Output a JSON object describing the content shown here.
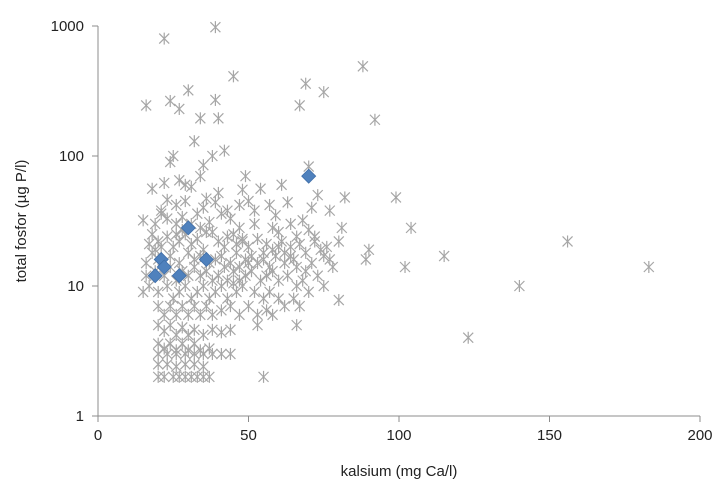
{
  "chart_data": {
    "type": "scatter",
    "title": "",
    "xlabel": "kalsium (mg Ca/l)",
    "ylabel": "total fosfor (µg P/l)",
    "xlim": [
      0,
      200
    ],
    "ylim": [
      1,
      1000
    ],
    "y_scale": "log",
    "grid": false,
    "legend": "none",
    "x_ticks": [
      0,
      50,
      100,
      150,
      200
    ],
    "x_tick_labels": [
      "0",
      "50",
      "100",
      "150",
      "200"
    ],
    "y_ticks": [
      1,
      10,
      100,
      1000
    ],
    "y_tick_labels": [
      "1",
      "10",
      "100",
      "1000"
    ],
    "colors": {
      "series_1": "#a6a6a6",
      "series_2": "#4f81bd",
      "axis": "#8c8c8c"
    },
    "series": [
      {
        "marker": "asterisk",
        "color": "#a6a6a6",
        "points": [
          [
            22,
            800
          ],
          [
            39,
            980
          ],
          [
            88,
            490
          ],
          [
            45,
            410
          ],
          [
            69,
            360
          ],
          [
            75,
            310
          ],
          [
            30,
            320
          ],
          [
            67,
            245
          ],
          [
            16,
            245
          ],
          [
            24,
            265
          ],
          [
            39,
            270
          ],
          [
            27,
            230
          ],
          [
            92,
            190
          ],
          [
            34,
            195
          ],
          [
            40,
            195
          ],
          [
            32,
            130
          ],
          [
            25,
            100
          ],
          [
            24,
            90
          ],
          [
            35,
            85
          ],
          [
            38,
            100
          ],
          [
            42,
            110
          ],
          [
            29,
            60
          ],
          [
            22,
            62
          ],
          [
            18,
            56
          ],
          [
            34,
            70
          ],
          [
            27,
            65
          ],
          [
            31,
            58
          ],
          [
            70,
            83
          ],
          [
            61,
            60
          ],
          [
            49,
            70
          ],
          [
            40,
            52
          ],
          [
            36,
            47
          ],
          [
            39,
            44
          ],
          [
            43,
            38
          ],
          [
            48,
            55
          ],
          [
            54,
            56
          ],
          [
            57,
            42
          ],
          [
            63,
            44
          ],
          [
            71,
            40
          ],
          [
            73,
            50
          ],
          [
            82,
            48
          ],
          [
            99,
            48
          ],
          [
            77,
            38
          ],
          [
            68,
            32
          ],
          [
            59,
            35
          ],
          [
            52,
            30
          ],
          [
            47,
            28
          ],
          [
            44,
            33
          ],
          [
            15,
            32
          ],
          [
            19,
            30
          ],
          [
            21,
            36
          ],
          [
            23,
            33
          ],
          [
            26,
            30
          ],
          [
            28,
            34
          ],
          [
            33,
            36
          ],
          [
            37,
            31
          ],
          [
            18,
            25
          ],
          [
            20,
            22
          ],
          [
            23,
            24
          ],
          [
            25,
            20
          ],
          [
            27,
            22
          ],
          [
            29,
            25
          ],
          [
            31,
            21
          ],
          [
            33,
            23
          ],
          [
            35,
            19
          ],
          [
            38,
            26
          ],
          [
            40,
            22
          ],
          [
            42,
            20
          ],
          [
            45,
            25
          ],
          [
            48,
            22
          ],
          [
            50,
            20
          ],
          [
            53,
            23
          ],
          [
            56,
            21
          ],
          [
            58,
            19
          ],
          [
            61,
            22
          ],
          [
            64,
            20
          ],
          [
            67,
            21
          ],
          [
            69,
            18
          ],
          [
            72,
            24
          ],
          [
            74,
            19
          ],
          [
            76,
            20
          ],
          [
            80,
            22
          ],
          [
            81,
            28
          ],
          [
            104,
            28
          ],
          [
            90,
            19
          ],
          [
            89,
            16
          ],
          [
            18,
            18
          ],
          [
            20,
            16
          ],
          [
            24,
            17
          ],
          [
            27,
            15
          ],
          [
            30,
            18
          ],
          [
            32,
            16
          ],
          [
            34,
            17
          ],
          [
            37,
            15
          ],
          [
            39,
            16
          ],
          [
            41,
            17
          ],
          [
            44,
            15
          ],
          [
            46,
            18
          ],
          [
            49,
            16
          ],
          [
            51,
            17
          ],
          [
            53,
            15
          ],
          [
            55,
            16
          ],
          [
            57,
            14
          ],
          [
            59,
            17
          ],
          [
            62,
            15
          ],
          [
            65,
            16
          ],
          [
            66,
            14
          ],
          [
            69,
            13
          ],
          [
            71,
            15
          ],
          [
            73,
            12
          ],
          [
            115,
            17
          ],
          [
            102,
            14
          ],
          [
            156,
            22
          ],
          [
            183,
            14
          ],
          [
            16,
            12
          ],
          [
            19,
            13
          ],
          [
            22,
            12
          ],
          [
            24,
            14
          ],
          [
            26,
            11
          ],
          [
            28,
            13
          ],
          [
            30,
            12
          ],
          [
            32,
            14
          ],
          [
            34,
            12
          ],
          [
            36,
            13
          ],
          [
            38,
            11
          ],
          [
            40,
            12
          ],
          [
            42,
            14
          ],
          [
            45,
            13
          ],
          [
            47,
            11
          ],
          [
            49,
            12
          ],
          [
            51,
            13
          ],
          [
            54,
            11
          ],
          [
            56,
            12
          ],
          [
            58,
            13
          ],
          [
            60,
            11
          ],
          [
            63,
            12
          ],
          [
            66,
            10
          ],
          [
            68,
            11
          ],
          [
            70,
            9
          ],
          [
            75,
            10
          ],
          [
            17,
            10
          ],
          [
            20,
            9
          ],
          [
            23,
            10
          ],
          [
            25,
            8
          ],
          [
            27,
            9
          ],
          [
            29,
            10
          ],
          [
            31,
            8
          ],
          [
            33,
            9
          ],
          [
            35,
            10
          ],
          [
            37,
            8
          ],
          [
            39,
            9
          ],
          [
            41,
            10
          ],
          [
            43,
            8
          ],
          [
            46,
            9
          ],
          [
            48,
            10
          ],
          [
            52,
            9
          ],
          [
            55,
            8
          ],
          [
            57,
            9
          ],
          [
            60,
            8
          ],
          [
            62,
            7
          ],
          [
            65,
            8
          ],
          [
            67,
            7
          ],
          [
            80,
            7.8
          ],
          [
            140,
            10
          ],
          [
            15,
            9
          ],
          [
            20,
            7
          ],
          [
            22,
            6
          ],
          [
            24,
            7
          ],
          [
            26,
            6
          ],
          [
            28,
            7
          ],
          [
            30,
            6
          ],
          [
            32,
            7
          ],
          [
            34,
            6
          ],
          [
            36,
            7
          ],
          [
            38,
            6
          ],
          [
            41,
            6.5
          ],
          [
            44,
            7
          ],
          [
            47,
            6
          ],
          [
            50,
            7
          ],
          [
            53,
            6
          ],
          [
            56,
            6.5
          ],
          [
            58,
            6
          ],
          [
            66,
            5
          ],
          [
            53,
            5
          ],
          [
            20,
            5
          ],
          [
            22,
            4.5
          ],
          [
            24,
            5
          ],
          [
            26,
            4.2
          ],
          [
            28,
            4.8
          ],
          [
            30,
            4.2
          ],
          [
            32,
            4.6
          ],
          [
            35,
            4.2
          ],
          [
            38,
            4.6
          ],
          [
            41,
            4.4
          ],
          [
            44,
            4.6
          ],
          [
            123,
            4
          ],
          [
            20,
            3.6
          ],
          [
            22,
            3.3
          ],
          [
            24,
            3.6
          ],
          [
            26,
            3.2
          ],
          [
            28,
            3.6
          ],
          [
            30,
            3.2
          ],
          [
            32,
            3.6
          ],
          [
            34,
            3.2
          ],
          [
            37,
            3.3
          ],
          [
            20,
            3
          ],
          [
            23,
            3
          ],
          [
            26,
            3
          ],
          [
            29,
            3
          ],
          [
            32,
            3
          ],
          [
            35,
            3
          ],
          [
            38,
            3
          ],
          [
            41,
            3
          ],
          [
            44,
            3
          ],
          [
            20,
            2.5
          ],
          [
            23,
            2.5
          ],
          [
            26,
            2.4
          ],
          [
            29,
            2.5
          ],
          [
            32,
            2.5
          ],
          [
            35,
            2.4
          ],
          [
            20,
            2
          ],
          [
            22,
            2
          ],
          [
            25,
            2
          ],
          [
            27,
            2
          ],
          [
            29,
            2
          ],
          [
            31,
            2
          ],
          [
            33,
            2
          ],
          [
            35,
            2
          ],
          [
            37,
            2
          ],
          [
            55,
            2
          ],
          [
            17,
            21
          ],
          [
            19,
            19
          ],
          [
            21,
            20
          ],
          [
            16,
            15
          ],
          [
            50,
            45
          ],
          [
            52,
            38
          ],
          [
            58,
            28
          ],
          [
            60,
            26
          ],
          [
            64,
            30
          ],
          [
            66,
            24
          ],
          [
            70,
            27
          ],
          [
            72,
            22
          ],
          [
            75,
            17
          ],
          [
            77,
            16
          ],
          [
            78,
            14
          ],
          [
            47,
            42
          ],
          [
            41,
            36
          ],
          [
            35,
            40
          ],
          [
            29,
            45
          ],
          [
            26,
            42
          ],
          [
            23,
            46
          ],
          [
            21,
            38
          ],
          [
            45,
            10.5
          ],
          [
            43,
            11
          ],
          [
            47,
            14
          ],
          [
            50,
            15
          ],
          [
            55,
            18
          ],
          [
            60,
            20
          ],
          [
            62,
            18
          ],
          [
            64,
            17
          ],
          [
            46,
            21
          ],
          [
            48,
            23
          ],
          [
            43,
            24
          ],
          [
            36,
            26
          ],
          [
            34,
            28
          ],
          [
            31,
            30
          ],
          [
            26,
            25
          ],
          [
            28,
            27
          ]
        ]
      },
      {
        "marker": "diamond",
        "color": "#4f81bd",
        "points": [
          [
            70,
            70
          ],
          [
            30,
            28
          ],
          [
            21,
            16
          ],
          [
            36,
            16
          ],
          [
            22,
            14
          ],
          [
            19,
            12
          ],
          [
            27,
            12
          ]
        ]
      }
    ]
  }
}
